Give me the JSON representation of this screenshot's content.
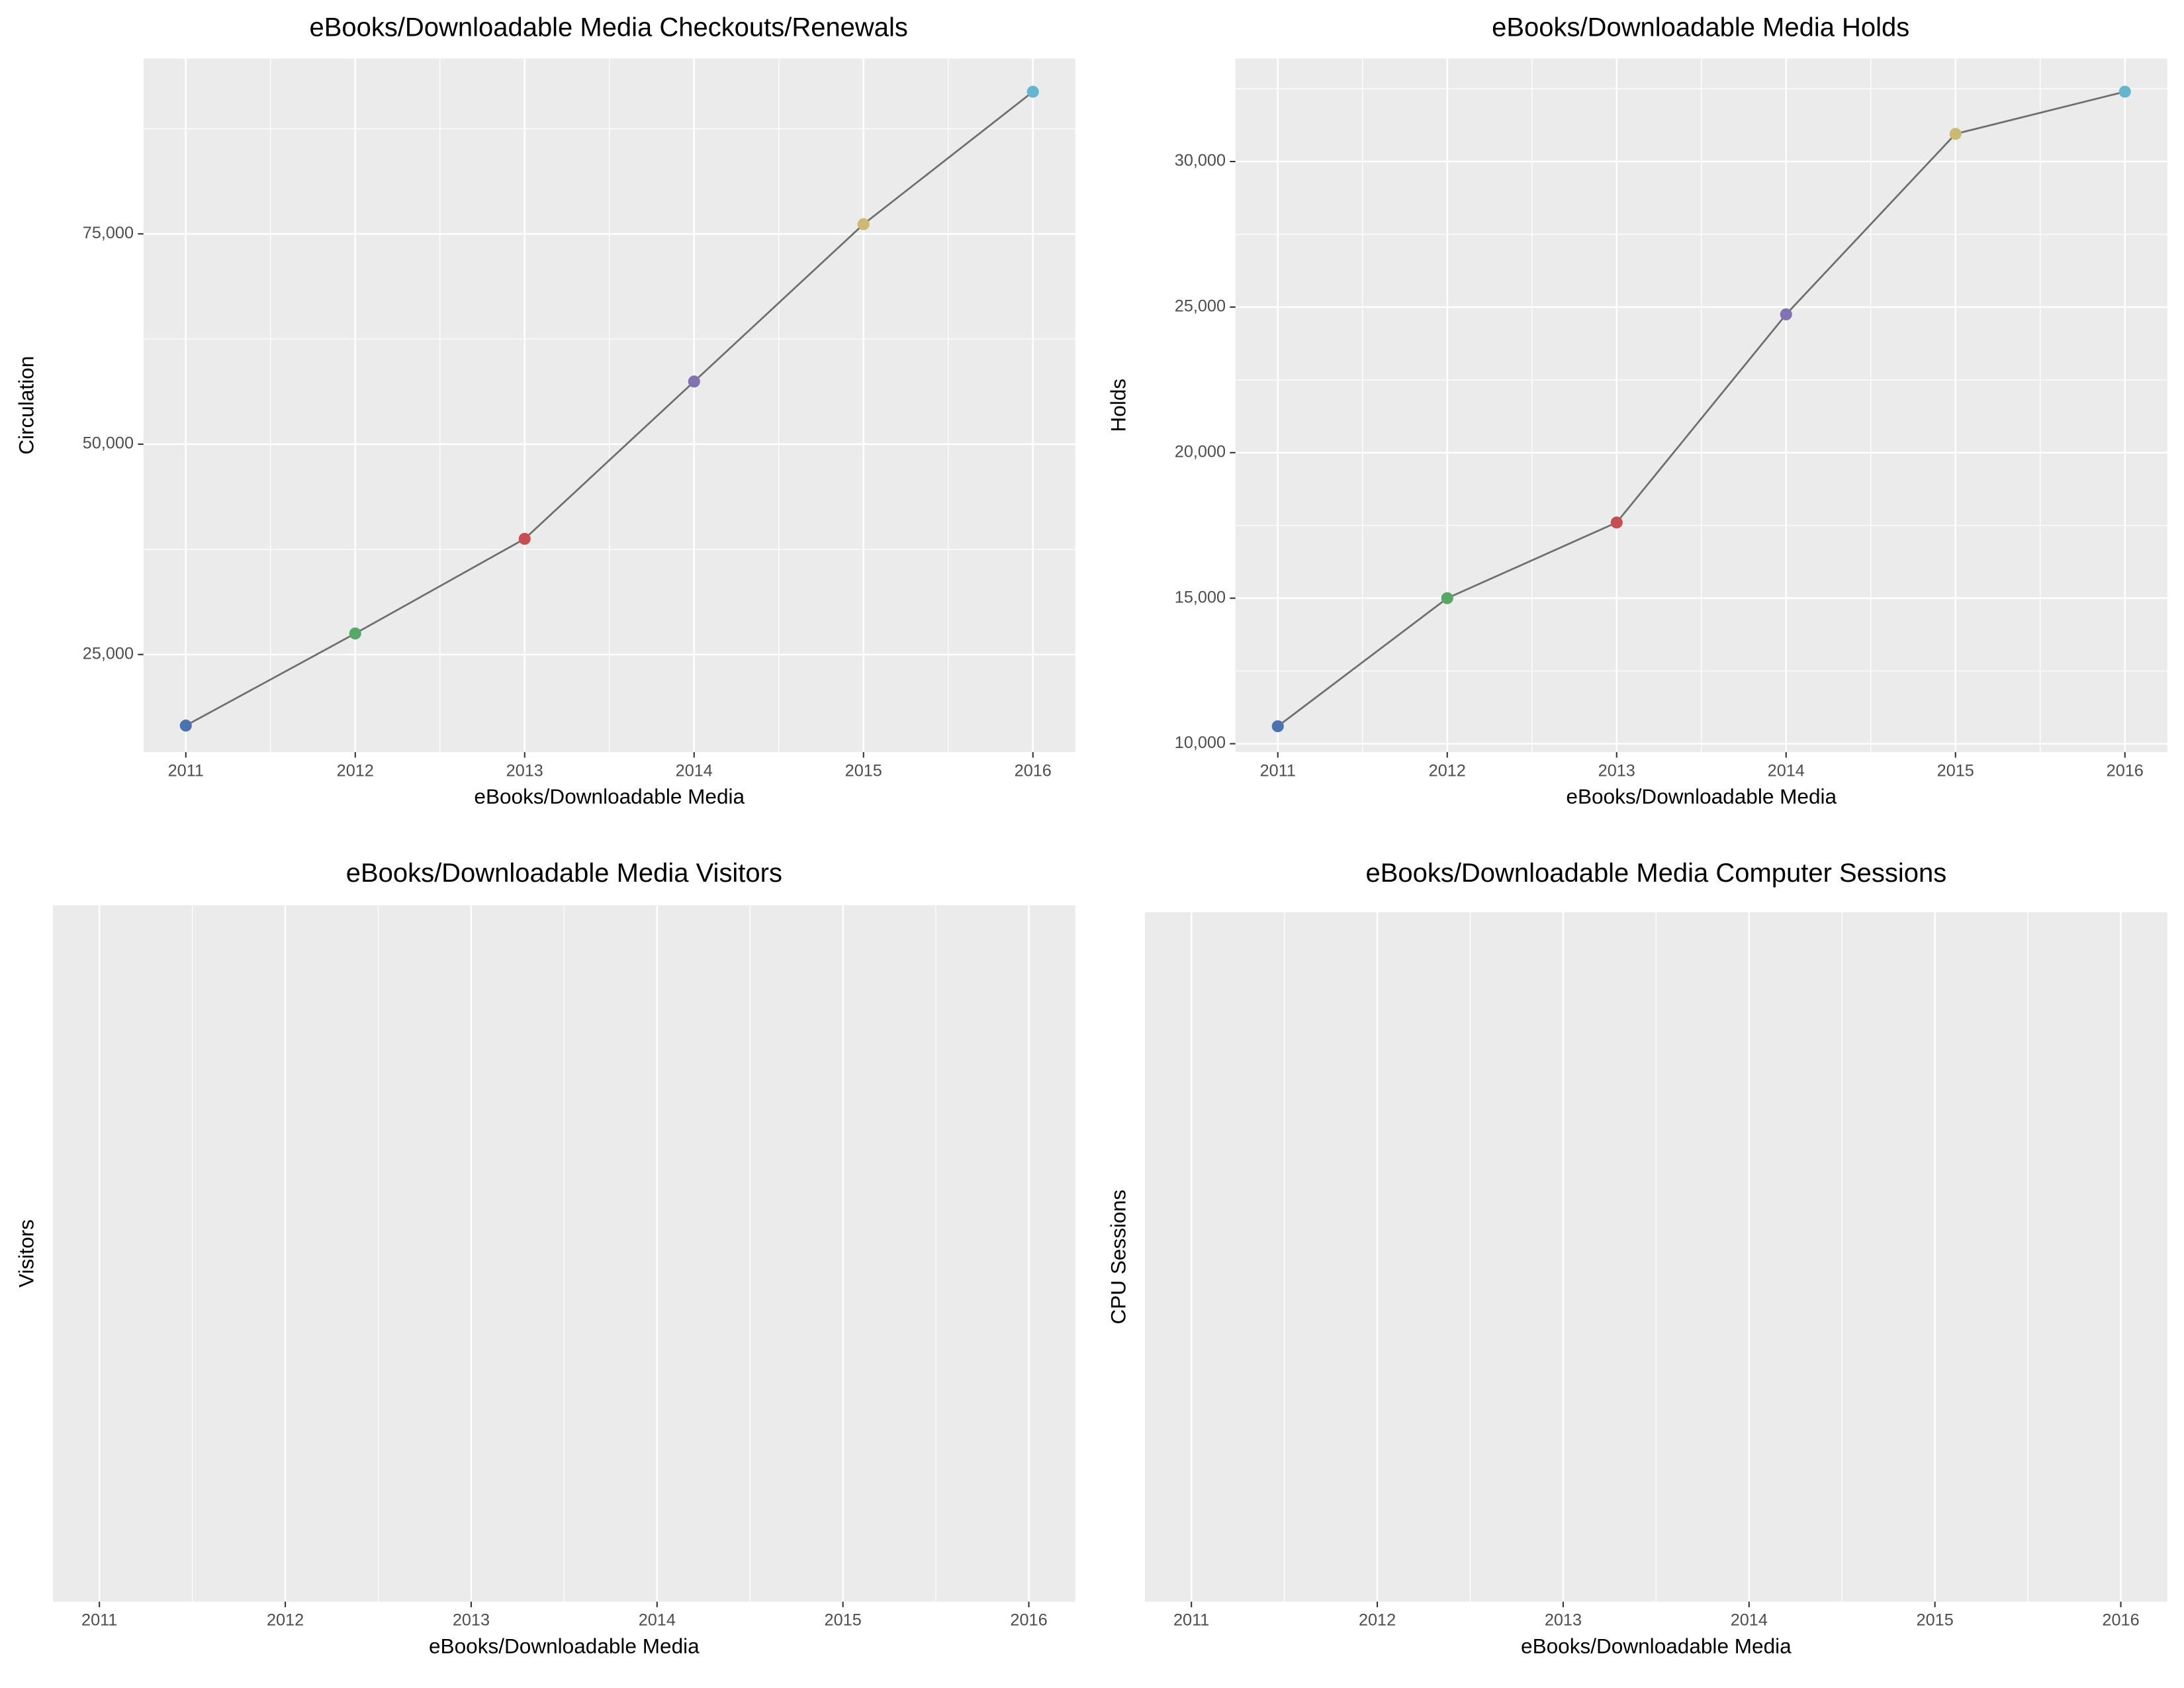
{
  "chart_data": [
    {
      "type": "line",
      "title": "eBooks/Downloadable Media Checkouts/Renewals",
      "x_label": "eBooks/Downloadable Media",
      "y_label": "Circulation",
      "x": [
        2011,
        2012,
        2013,
        2014,
        2015,
        2016
      ],
      "values": [
        16550,
        27500,
        38750,
        57450,
        76150,
        91900
      ],
      "colors": [
        "#4c72b0",
        "#55a868",
        "#c44e52",
        "#8172b2",
        "#ccb974",
        "#64b5cd"
      ],
      "line_color": "#6e6e6e",
      "xlim": [
        2010.75,
        2016.25
      ],
      "xticks": [
        2011,
        2012,
        2013,
        2014,
        2015,
        2016
      ],
      "ylim": [
        13400,
        95850
      ],
      "yticks": [
        {
          "value": 25000,
          "label": "25,000"
        },
        {
          "value": 50000,
          "label": "50,000"
        },
        {
          "value": 75000,
          "label": "75,000"
        }
      ],
      "grid": true
    },
    {
      "type": "line",
      "title": "eBooks/Downloadable Media Holds",
      "x_label": "eBooks/Downloadable Media",
      "y_label": "Holds",
      "x": [
        2011,
        2012,
        2013,
        2014,
        2015,
        2016
      ],
      "values": [
        10600,
        15000,
        17600,
        24750,
        30950,
        32400
      ],
      "colors": [
        "#4c72b0",
        "#55a868",
        "#c44e52",
        "#8172b2",
        "#ccb974",
        "#64b5cd"
      ],
      "line_color": "#6e6e6e",
      "xlim": [
        2010.75,
        2016.25
      ],
      "xticks": [
        2011,
        2012,
        2013,
        2014,
        2015,
        2016
      ],
      "ylim": [
        9713,
        33540
      ],
      "yticks": [
        {
          "value": 10000,
          "label": "10,000"
        },
        {
          "value": 15000,
          "label": "15,000"
        },
        {
          "value": 20000,
          "label": "20,000"
        },
        {
          "value": 25000,
          "label": "25,000"
        },
        {
          "value": 30000,
          "label": "30,000"
        }
      ],
      "grid": true
    },
    {
      "type": "line",
      "title": "eBooks/Downloadable Media Visitors",
      "x_label": "eBooks/Downloadable Media",
      "y_label": "Visitors",
      "xlim": [
        2010.75,
        2016.25
      ],
      "xticks": [
        2011,
        2012,
        2013,
        2014,
        2015,
        2016
      ],
      "grid": true
    },
    {
      "type": "line",
      "title": "eBooks/Downloadable Media Computer Sessions",
      "x_label": "eBooks/Downloadable Media",
      "y_label": "CPU Sessions",
      "xlim": [
        2010.75,
        2016.25
      ],
      "xticks": [
        2011,
        2012,
        2013,
        2014,
        2015,
        2016
      ],
      "grid": true
    }
  ]
}
